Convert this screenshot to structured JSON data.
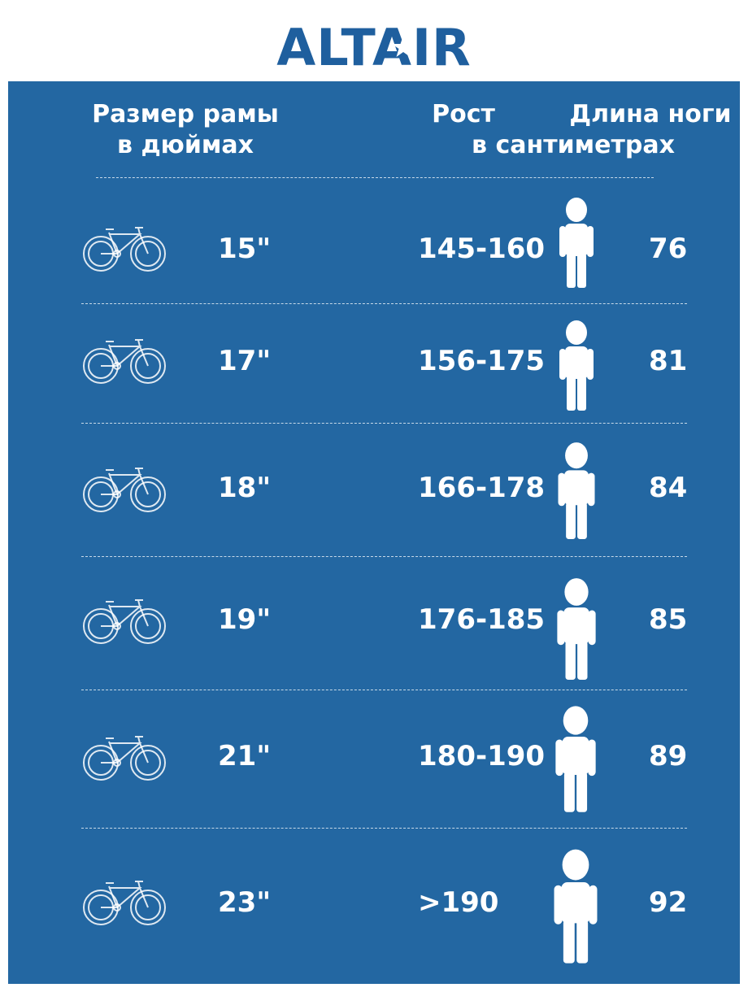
{
  "brand": {
    "name": "ALTAIR"
  },
  "headers": {
    "frame_line1": "Размер рамы",
    "frame_line2": "в дюймах",
    "height": "Рост",
    "leg": "Длина ноги",
    "units": "в сантиметрах"
  },
  "rows": [
    {
      "frame": "15\"",
      "height": "145-160",
      "leg": "76"
    },
    {
      "frame": "17\"",
      "height": "156-175",
      "leg": "81"
    },
    {
      "frame": "18\"",
      "height": "166-178",
      "leg": "84"
    },
    {
      "frame": "19\"",
      "height": "176-185",
      "leg": "85"
    },
    {
      "frame": "21\"",
      "height": "180-190",
      "leg": "89"
    },
    {
      "frame": "23\"",
      "height": ">190",
      "leg": "92"
    }
  ],
  "colors": {
    "panel": "#2367a2",
    "text": "#ffffff",
    "logo": "#1f5f9e"
  },
  "icons": {
    "bike": "bicycle-icon",
    "person": "person-icon"
  }
}
